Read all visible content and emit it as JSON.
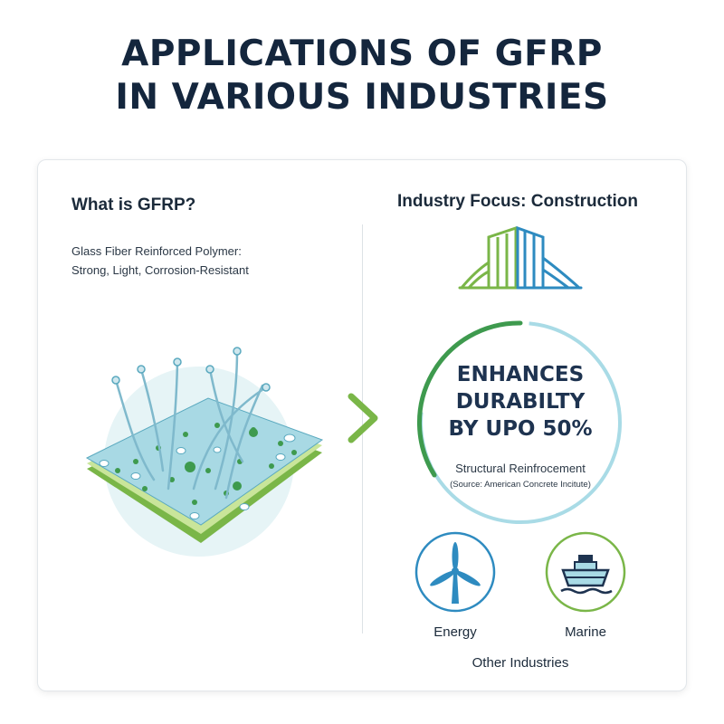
{
  "title": {
    "line1": "APPLICATIONS OF GFRP",
    "line2": "IN VARIOUS INDUSTRIES"
  },
  "left_panel": {
    "heading": "What is GFRP?",
    "description_line1": "Glass Fiber Reinforced Polymer:",
    "description_line2": "Strong, Light, Corrosion-Resistant",
    "illustration": "gfrp-composite-layer-icon"
  },
  "right_panel": {
    "heading": "Industry Focus: Construction",
    "construction_icon": "construction-building-bridge-icon",
    "stat": {
      "line1": "ENHANCES",
      "line2": "DURABILTY",
      "line3": "BY UPO 50%",
      "label": "Structural Reinfrocement",
      "source": "(Source: American Concrete Incitute)"
    },
    "industries": [
      {
        "label": "Energy",
        "icon": "wind-turbine-icon"
      },
      {
        "label": "Marine",
        "icon": "ship-icon"
      }
    ],
    "other_label": "Other Industries"
  },
  "colors": {
    "title": "#14263d",
    "green": "#7ab648",
    "dark_green": "#3e9a4e",
    "blue": "#2e8bc0",
    "light_blue": "#a9dbe6"
  }
}
